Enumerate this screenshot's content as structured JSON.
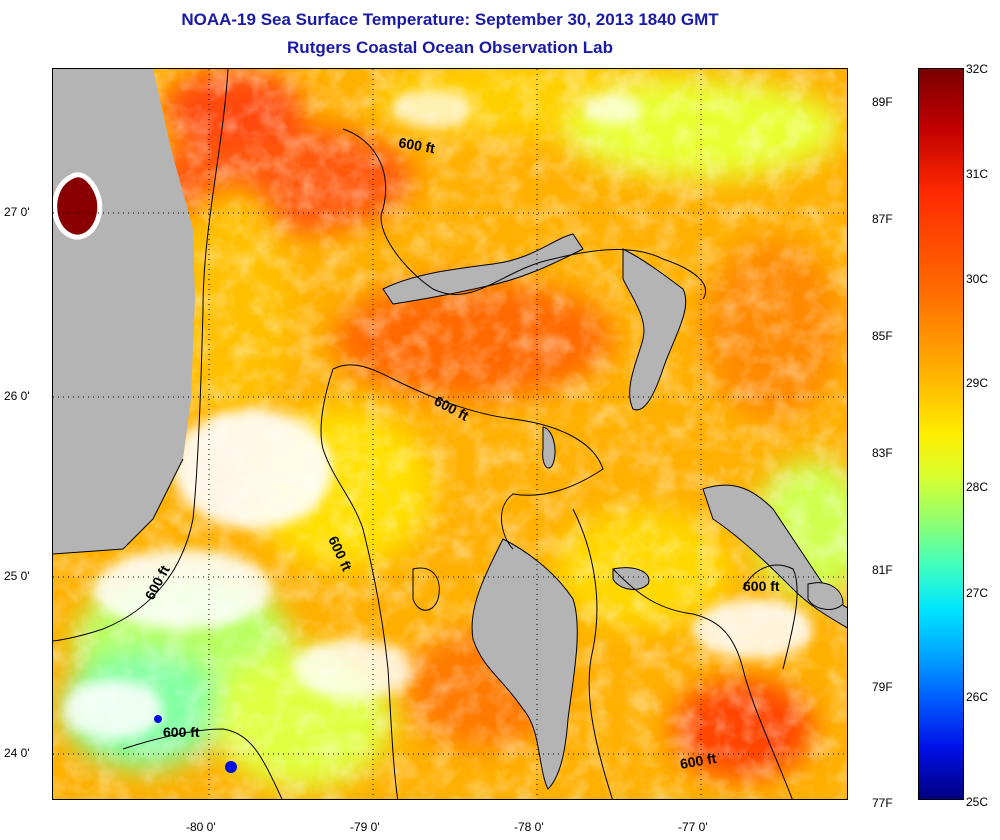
{
  "header": {
    "title": "NOAA-19 Sea Surface Temperature:  September 30, 2013 1840 GMT",
    "subtitle": "Rutgers Coastal Ocean Observation Lab"
  },
  "map": {
    "lat_labels": [
      "27 0'",
      "26 0'",
      "25 0'",
      "24 0'"
    ],
    "lon_labels": [
      "-80 0'",
      "-79 0'",
      "-78 0'",
      "-77 0'"
    ],
    "contour_labels": [
      "600 ft",
      "600 ft",
      "600 ft",
      "600 ft",
      "600 ft",
      "600 ft"
    ],
    "colors": {
      "land": "#b4b4b4",
      "cloud": "#ffffff",
      "ocean_warm": "#ffa000",
      "ocean_hot": "#ff5a00",
      "ocean_cool": "#d8ff40"
    }
  },
  "colorbar": {
    "celsius": [
      "32C",
      "31C",
      "30C",
      "29C",
      "28C",
      "27C",
      "26C",
      "25C"
    ],
    "fahrenheit": [
      "89F",
      "87F",
      "85F",
      "83F",
      "81F",
      "79F",
      "77F"
    ],
    "range_c": [
      25,
      32
    ]
  }
}
